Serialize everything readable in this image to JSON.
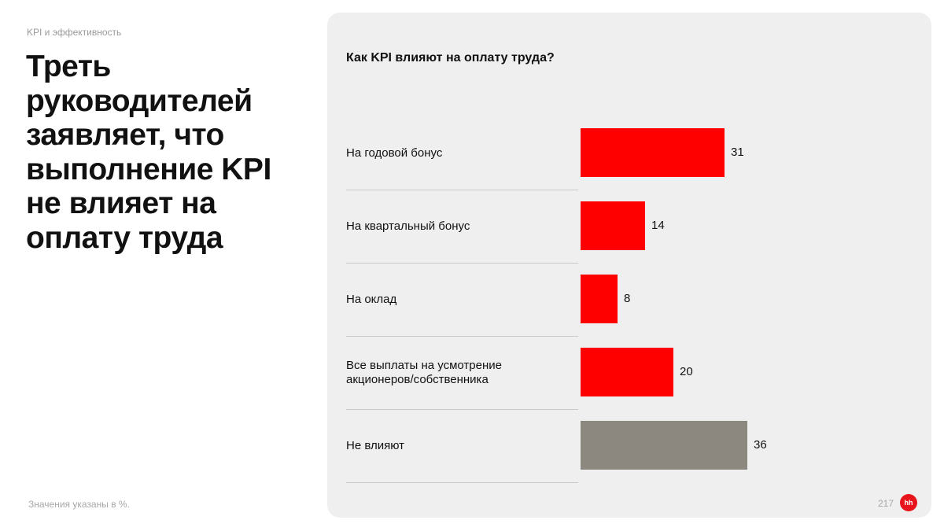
{
  "page": {
    "section_label": "KPI и эффективность",
    "headline": "Треть руководителей заявляет, что выполнение KPI не влияет на оплату труда",
    "footnote": "Значения указаны в %.",
    "page_number": "217",
    "logo_text": "hh"
  },
  "colors": {
    "highlight": "#ff0000",
    "neutral": "#8c8880",
    "panel_bg": "#efefef",
    "logo": "#e8141b"
  },
  "chart_data": {
    "type": "bar",
    "orientation": "horizontal",
    "title": "Как KPI влияют на оплату труда?",
    "categories": [
      "На годовой бонус",
      "На квартальный бонус",
      "На оклад",
      "Все выплаты на усмотрение акционеров/собственника",
      "Не влияют"
    ],
    "values": [
      31,
      14,
      8,
      20,
      36
    ],
    "value_labels": [
      "31",
      "14",
      "8",
      "20",
      "36"
    ],
    "bar_colors": [
      "#ff0000",
      "#ff0000",
      "#ff0000",
      "#ff0000",
      "#8c8880"
    ],
    "xlim": [
      0,
      36
    ],
    "grid": false,
    "legend": "none"
  }
}
